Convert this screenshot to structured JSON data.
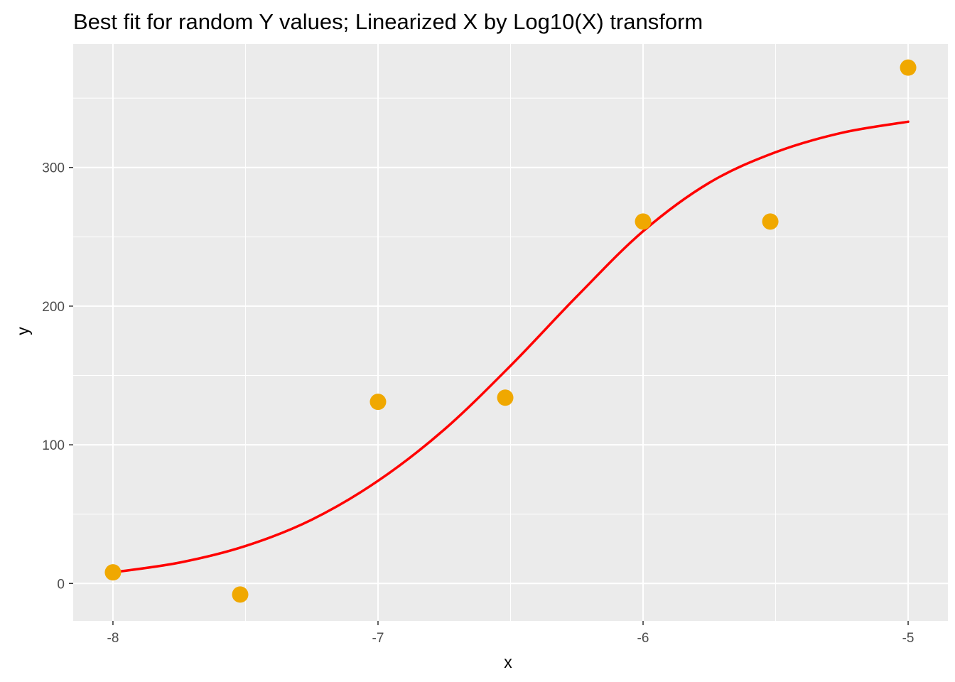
{
  "chart_data": {
    "type": "scatter",
    "title": "Best fit for random Y values; Linearized X by Log10(X) transform",
    "xlabel": "x",
    "ylabel": "y",
    "xlim": [
      -8.15,
      -4.85
    ],
    "ylim": [
      -27,
      389
    ],
    "x_ticks": [
      -8,
      -7,
      -6,
      -5
    ],
    "x_tick_labels": [
      "-8",
      "-7",
      "-6",
      "-5"
    ],
    "x_minor_ticks": [
      -7.5,
      -6.5,
      -5.5
    ],
    "y_ticks": [
      0,
      100,
      200,
      300
    ],
    "y_tick_labels": [
      "0",
      "100",
      "200",
      "300"
    ],
    "y_minor_ticks": [
      50,
      150,
      250,
      350
    ],
    "grid": true,
    "legend": "none",
    "colors": {
      "panel_background": "#ebebeb",
      "grid": "#ffffff",
      "points": "#f0a800",
      "fit_line": "#ff0000"
    },
    "series": [
      {
        "kind": "points",
        "x": [
          -8.0,
          -7.52,
          -7.0,
          -6.52,
          -6.0,
          -5.52,
          -5.0
        ],
        "y": [
          8,
          -8,
          131,
          134,
          261,
          261,
          372
        ]
      },
      {
        "kind": "fit-line",
        "x": [
          -8.0,
          -7.75,
          -7.5,
          -7.25,
          -7.0,
          -6.75,
          -6.5,
          -6.25,
          -6.0,
          -5.75,
          -5.5,
          -5.25,
          -5.0
        ],
        "y": [
          8,
          15,
          27,
          46,
          74,
          111,
          157,
          207,
          254,
          289,
          311,
          325,
          333
        ]
      }
    ]
  }
}
